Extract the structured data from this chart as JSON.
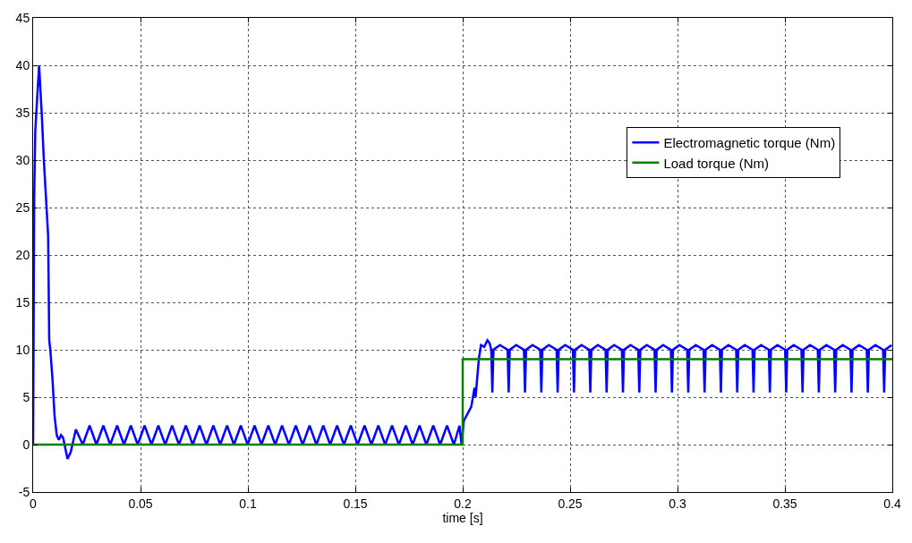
{
  "chart_data": {
    "type": "line",
    "xlabel": "time [s]",
    "xlim": [
      0,
      0.4
    ],
    "xticks": [
      0,
      0.05,
      0.1,
      0.15,
      0.2,
      0.25,
      0.3,
      0.35,
      0.4
    ],
    "ylim": [
      -5,
      45
    ],
    "yticks": [
      -5,
      0,
      5,
      10,
      15,
      20,
      25,
      30,
      35,
      40,
      45
    ],
    "grid": true,
    "legend": "top right",
    "marker": "none",
    "line_style": "solid",
    "series": [
      {
        "name": "Electromagnetic torque (Nm)",
        "color": "#0000ff",
        "x": [
          0,
          0.0005,
          0.001,
          0.002,
          0.0028,
          0.0035,
          0.004,
          0.005,
          0.006,
          0.007,
          0.0075,
          0.008,
          0.009,
          0.01,
          0.011,
          0.012,
          0.013,
          0.014,
          0.016,
          0.0175,
          0.0199,
          0.0231,
          0.0263,
          0.0295,
          0.0327,
          0.0359,
          0.0391,
          0.0423,
          0.0455,
          0.0487,
          0.0519,
          0.0551,
          0.0583,
          0.0615,
          0.0647,
          0.0679,
          0.0711,
          0.0743,
          0.0775,
          0.0807,
          0.0839,
          0.0871,
          0.0903,
          0.0935,
          0.0967,
          0.0999,
          0.1031,
          0.1063,
          0.1095,
          0.1127,
          0.1159,
          0.1191,
          0.1223,
          0.1255,
          0.1287,
          0.1319,
          0.1351,
          0.1383,
          0.1415,
          0.1447,
          0.1479,
          0.1511,
          0.1543,
          0.1575,
          0.1607,
          0.1639,
          0.1671,
          0.1703,
          0.1735,
          0.1767,
          0.1799,
          0.1831,
          0.1863,
          0.1895,
          0.1927,
          0.1959,
          0.1985,
          0.1995,
          0.2005,
          0.204,
          0.2055,
          0.206,
          0.2075,
          0.2085,
          0.21,
          0.2115,
          0.2125,
          0.2133,
          0.2138,
          0.2143,
          0.2173,
          0.2209,
          0.2214,
          0.2219,
          0.2249,
          0.2285,
          0.229,
          0.2295,
          0.2325,
          0.2361,
          0.2366,
          0.2371,
          0.2401,
          0.2437,
          0.2442,
          0.2447,
          0.2477,
          0.2513,
          0.2518,
          0.2523,
          0.2553,
          0.2589,
          0.2594,
          0.2599,
          0.2629,
          0.2665,
          0.267,
          0.2675,
          0.2705,
          0.2741,
          0.2746,
          0.2751,
          0.2781,
          0.2817,
          0.2822,
          0.2827,
          0.2857,
          0.2893,
          0.2898,
          0.2903,
          0.2933,
          0.2969,
          0.2974,
          0.2979,
          0.3009,
          0.3045,
          0.305,
          0.3055,
          0.3085,
          0.3121,
          0.3126,
          0.3131,
          0.3161,
          0.3197,
          0.3202,
          0.3207,
          0.3237,
          0.3273,
          0.3278,
          0.3283,
          0.3313,
          0.3349,
          0.3354,
          0.3359,
          0.3389,
          0.3425,
          0.343,
          0.3435,
          0.3465,
          0.3501,
          0.3506,
          0.3511,
          0.3541,
          0.3577,
          0.3582,
          0.3587,
          0.3617,
          0.3653,
          0.3658,
          0.3663,
          0.3693,
          0.3729,
          0.3734,
          0.3739,
          0.3769,
          0.3805,
          0.381,
          0.3815,
          0.3845,
          0.3881,
          0.3886,
          0.3891,
          0.3921,
          0.3957,
          0.3962,
          0.3967,
          0.3997
        ],
        "values": [
          0,
          26,
          33,
          37,
          40,
          37,
          35,
          30,
          26,
          22,
          11,
          10,
          7,
          3,
          1,
          0.5,
          1,
          0.7,
          -1.5,
          -0.8,
          1.6,
          0,
          2,
          0,
          2,
          0,
          2,
          0,
          2,
          0,
          2,
          0,
          2,
          0,
          2,
          0,
          2,
          0,
          2,
          0,
          2,
          0,
          2,
          0,
          2,
          0,
          2,
          0,
          2,
          0,
          2,
          0,
          2,
          0,
          2,
          0,
          2,
          0,
          2,
          0,
          2,
          0,
          2,
          0,
          2,
          0,
          2,
          0,
          2,
          0,
          2,
          0,
          2,
          0,
          2,
          0,
          2,
          0,
          2.5,
          4,
          6,
          5,
          9,
          10.5,
          10.3,
          11,
          10.7,
          10,
          5.5,
          10,
          10.5,
          10,
          5.5,
          10,
          10.5,
          10,
          5.5,
          10,
          10.5,
          10,
          5.5,
          10,
          10.5,
          10,
          5.5,
          10,
          10.5,
          10,
          5.5,
          10,
          10.5,
          10,
          5.5,
          10,
          10.5,
          10,
          5.5,
          10,
          10.5,
          10,
          5.5,
          10,
          10.5,
          10,
          5.5,
          10,
          10.5,
          10,
          5.5,
          10,
          10.5,
          10,
          5.5,
          10,
          10.5,
          10,
          5.5,
          10,
          10.5,
          10,
          5.5,
          10,
          10.5,
          10,
          5.5,
          10,
          10.5,
          10,
          5.5,
          10,
          10.5,
          10,
          5.5,
          10,
          10.5,
          10,
          5.5,
          10,
          10.5,
          10,
          5.5,
          10,
          10.5,
          10,
          5.5,
          10,
          10.5,
          10,
          5.5,
          10,
          10.5,
          10,
          5.5,
          10,
          10.5,
          10,
          5.5,
          10,
          10.5,
          10,
          5.5,
          10,
          10.5,
          10,
          5.5,
          10,
          10.5
        ]
      },
      {
        "name": "Load torque (Nm)",
        "color": "#008000",
        "x": [
          0,
          0.2,
          0.2,
          0.4
        ],
        "values": [
          0,
          0,
          9,
          9
        ]
      }
    ]
  }
}
